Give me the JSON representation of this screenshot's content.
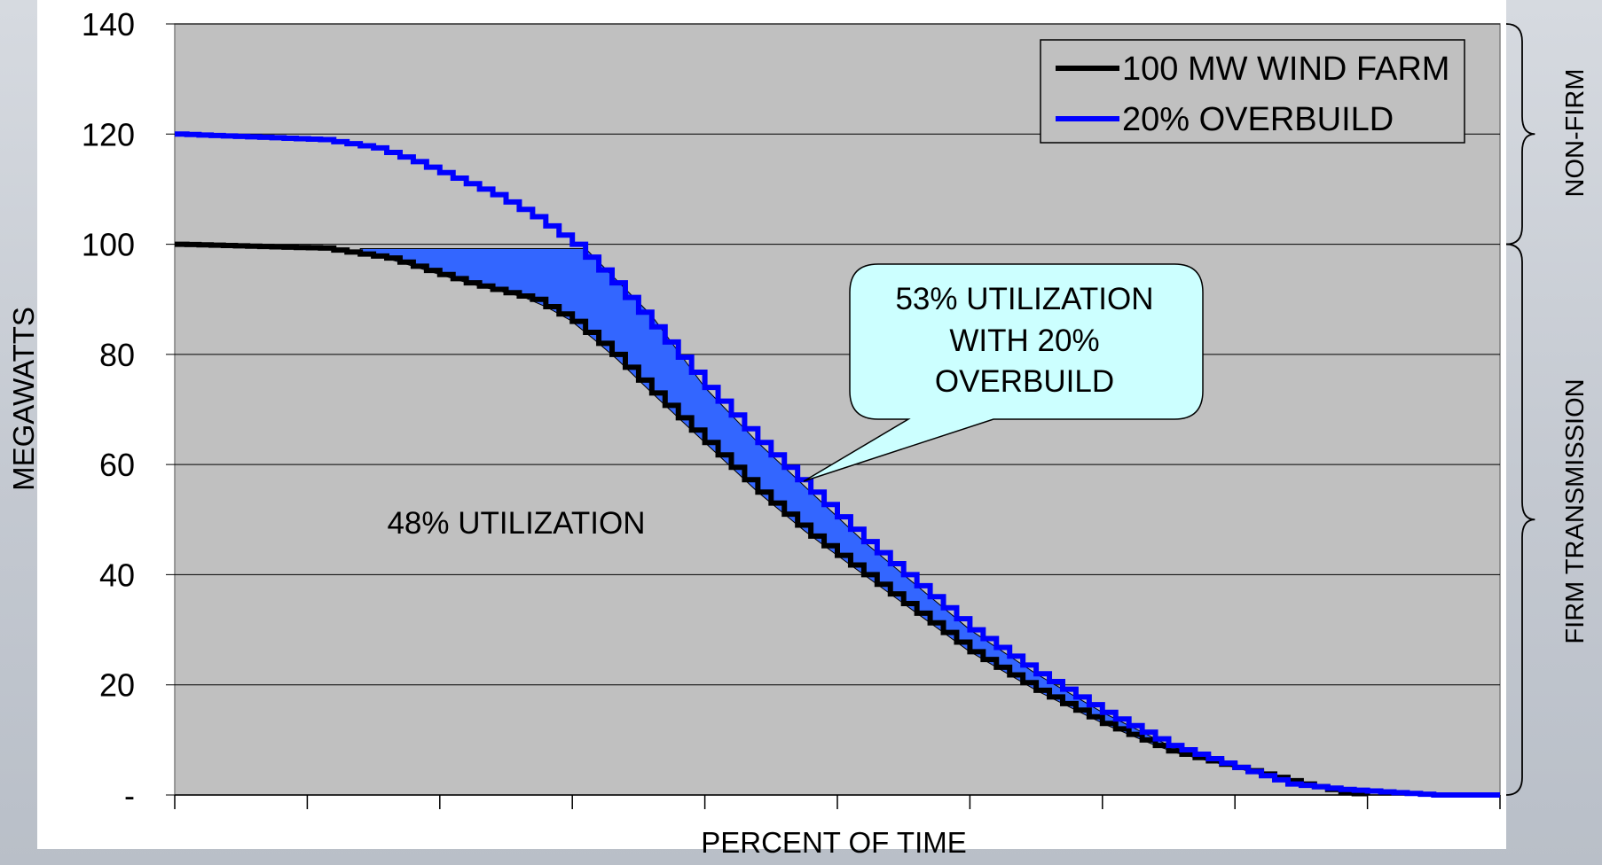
{
  "chart_data": {
    "type": "line",
    "xlabel": "PERCENT OF TIME",
    "ylabel": "MEGAWATTS",
    "xlim": [
      0,
      100
    ],
    "ylim": [
      0,
      140
    ],
    "y_ticks": [
      0,
      20,
      40,
      60,
      80,
      100,
      120,
      140
    ],
    "y_tick_labels": [
      "-",
      "20",
      "40",
      "60",
      "80",
      "100",
      "120",
      "140"
    ],
    "x_tick_count": 11,
    "grid": "horizontal",
    "legend_position": "top-right",
    "series": [
      {
        "name": "100 MW WIND FARM",
        "color": "#000000",
        "x": [
          0,
          11,
          16,
          22,
          27,
          30,
          33,
          36,
          40,
          44,
          48,
          52,
          56,
          60,
          65,
          70,
          75,
          80,
          85,
          88,
          90
        ],
        "y": [
          100,
          99.3,
          97.5,
          93,
          90,
          86,
          80,
          73,
          64,
          55,
          47,
          40,
          33,
          26,
          19,
          13,
          8,
          5,
          2,
          0.5,
          0
        ]
      },
      {
        "name": "20% OVERBUILD",
        "color": "#0000ff",
        "x": [
          0,
          11,
          15,
          18,
          21,
          24,
          27,
          30,
          33,
          36,
          40,
          44,
          48,
          52,
          56,
          60,
          65,
          70,
          75,
          80,
          84,
          88,
          95,
          100
        ],
        "y": [
          120,
          119,
          117.5,
          115,
          112,
          109,
          105,
          100,
          93,
          85,
          74,
          64,
          55,
          46,
          38,
          30,
          22,
          15,
          9,
          5,
          2,
          1,
          0,
          0
        ]
      }
    ],
    "shaded_region": {
      "color": "#3366ff",
      "upper_x": [
        14,
        31,
        36,
        40,
        44,
        48,
        52,
        56,
        60,
        65,
        70,
        75,
        80,
        84.5
      ],
      "upper_y": [
        99.2,
        99.2,
        87,
        74,
        64,
        55,
        46,
        38,
        30,
        22,
        15,
        9,
        5,
        2
      ]
    },
    "annotations": {
      "callout_lines": [
        "53% UTILIZATION",
        "WITH 20%",
        "OVERBUILD"
      ],
      "callout_color": "#ccffff",
      "region_label": "48% UTILIZATION"
    },
    "brackets": {
      "upper": "NON-FIRM",
      "lower": "FIRM TRANSMISSION",
      "upper_range": [
        100,
        140
      ],
      "lower_range": [
        0,
        100
      ]
    }
  }
}
